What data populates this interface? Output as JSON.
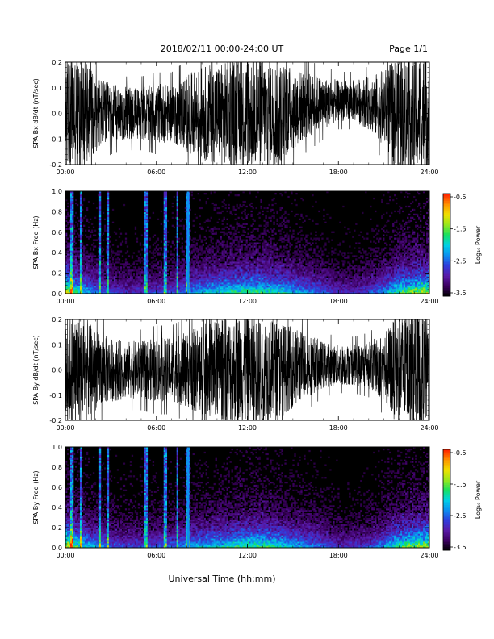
{
  "header": {
    "title": "2018/02/11   00:00-24:00 UT",
    "page": "Page 1/1"
  },
  "xlabel": "Universal Time (hh:mm)",
  "xticks": [
    "00:00",
    "06:00",
    "12:00",
    "18:00",
    "24:00"
  ],
  "colorbar": {
    "label": "Log₁₀ Power",
    "ticks": [
      "-0.5",
      "-1.5",
      "-2.5",
      "-3.5"
    ],
    "range": [
      -3.5,
      -0.5
    ],
    "colors": [
      "#000000",
      "#3c0060",
      "#5a1aa8",
      "#2f3ddc",
      "#0c8ff0",
      "#00d2e6",
      "#18e060",
      "#9ae81c",
      "#f0e000",
      "#ff9000",
      "#ff2000"
    ]
  },
  "chart_data": [
    {
      "type": "line",
      "ylabel": "SPA Bx dB/dt (nT/sec)",
      "ylim": [
        -0.2,
        0.2
      ],
      "yticks": [
        "0.2",
        "0.1",
        "0.0",
        "-0.1",
        "-0.2"
      ],
      "x_range_hours": [
        0,
        24
      ],
      "series": [
        {
          "envelope_hours": [
            0,
            1,
            2,
            3,
            4,
            5,
            6,
            7,
            8,
            9,
            10,
            11,
            12,
            13,
            14,
            15,
            16,
            17,
            18,
            19,
            20,
            21,
            22,
            23,
            24
          ],
          "amplitude": [
            0.2,
            0.2,
            0.13,
            0.1,
            0.09,
            0.09,
            0.1,
            0.1,
            0.13,
            0.16,
            0.17,
            0.18,
            0.19,
            0.19,
            0.18,
            0.14,
            0.11,
            0.09,
            0.07,
            0.07,
            0.09,
            0.13,
            0.2,
            0.2,
            0.2
          ],
          "offset": [
            0.0,
            0.0,
            0.0,
            0.0,
            0.0,
            0.0,
            0.0,
            0.0,
            0.0,
            0.0,
            0.0,
            0.0,
            0.0,
            0.0,
            0.0,
            0.02,
            0.03,
            0.04,
            0.05,
            0.05,
            0.04,
            0.02,
            0.0,
            0.0,
            0.0
          ]
        }
      ]
    },
    {
      "type": "heatmap",
      "ylabel": "SPA Bx Freq (Hz)",
      "ylim": [
        0.0,
        1.0
      ],
      "yticks": [
        "1.0",
        "0.8",
        "0.6",
        "0.4",
        "0.2",
        "0.0"
      ],
      "x_range_hours": [
        0,
        24
      ],
      "log_power_range": [
        -3.5,
        -0.5
      ],
      "activity_hours": [
        0,
        1,
        2,
        3,
        4,
        5,
        6,
        7,
        8,
        9,
        10,
        11,
        12,
        13,
        14,
        15,
        16,
        17,
        18,
        19,
        20,
        21,
        22,
        23,
        24
      ],
      "activity_level": [
        0.9,
        0.6,
        0.45,
        0.35,
        0.3,
        0.3,
        0.35,
        0.35,
        0.45,
        0.55,
        0.6,
        0.65,
        0.7,
        0.7,
        0.65,
        0.55,
        0.45,
        0.4,
        0.3,
        0.3,
        0.35,
        0.5,
        0.7,
        0.8,
        0.85
      ],
      "spike_hours": [
        0.4,
        1.0,
        2.3,
        2.8,
        5.3,
        6.6,
        7.4,
        8.05,
        8.1
      ]
    },
    {
      "type": "line",
      "ylabel": "SPA By dB/dt (nT/sec)",
      "ylim": [
        -0.2,
        0.2
      ],
      "yticks": [
        "0.2",
        "0.1",
        "0.0",
        "-0.1",
        "-0.2"
      ],
      "x_range_hours": [
        0,
        24
      ],
      "series": [
        {
          "envelope_hours": [
            0,
            1,
            2,
            3,
            4,
            5,
            6,
            7,
            8,
            9,
            10,
            11,
            12,
            13,
            14,
            15,
            16,
            17,
            18,
            19,
            20,
            21,
            22,
            23,
            24
          ],
          "amplitude": [
            0.2,
            0.2,
            0.14,
            0.11,
            0.1,
            0.1,
            0.11,
            0.11,
            0.13,
            0.16,
            0.17,
            0.19,
            0.2,
            0.19,
            0.17,
            0.14,
            0.11,
            0.08,
            0.07,
            0.07,
            0.08,
            0.12,
            0.2,
            0.2,
            0.2
          ],
          "offset": [
            0.0,
            0.0,
            0.0,
            0.0,
            0.0,
            0.0,
            0.0,
            0.0,
            0.0,
            0.0,
            0.0,
            0.0,
            0.0,
            0.0,
            0.0,
            0.01,
            0.02,
            0.02,
            0.02,
            0.02,
            0.02,
            0.01,
            0.0,
            0.0,
            0.0
          ]
        }
      ]
    },
    {
      "type": "heatmap",
      "ylabel": "SPA By Freq (Hz)",
      "ylim": [
        0.0,
        1.0
      ],
      "yticks": [
        "1.0",
        "0.8",
        "0.6",
        "0.4",
        "0.2",
        "0.0"
      ],
      "x_range_hours": [
        0,
        24
      ],
      "log_power_range": [
        -3.5,
        -0.5
      ],
      "activity_hours": [
        0,
        1,
        2,
        3,
        4,
        5,
        6,
        7,
        8,
        9,
        10,
        11,
        12,
        13,
        14,
        15,
        16,
        17,
        18,
        19,
        20,
        21,
        22,
        23,
        24
      ],
      "activity_level": [
        0.9,
        0.65,
        0.5,
        0.4,
        0.35,
        0.35,
        0.4,
        0.4,
        0.5,
        0.55,
        0.6,
        0.65,
        0.7,
        0.7,
        0.65,
        0.55,
        0.5,
        0.4,
        0.3,
        0.3,
        0.35,
        0.5,
        0.7,
        0.8,
        0.85
      ],
      "spike_hours": [
        0.4,
        1.0,
        2.3,
        2.8,
        5.3,
        6.6,
        7.4,
        8.05,
        8.1
      ]
    }
  ]
}
